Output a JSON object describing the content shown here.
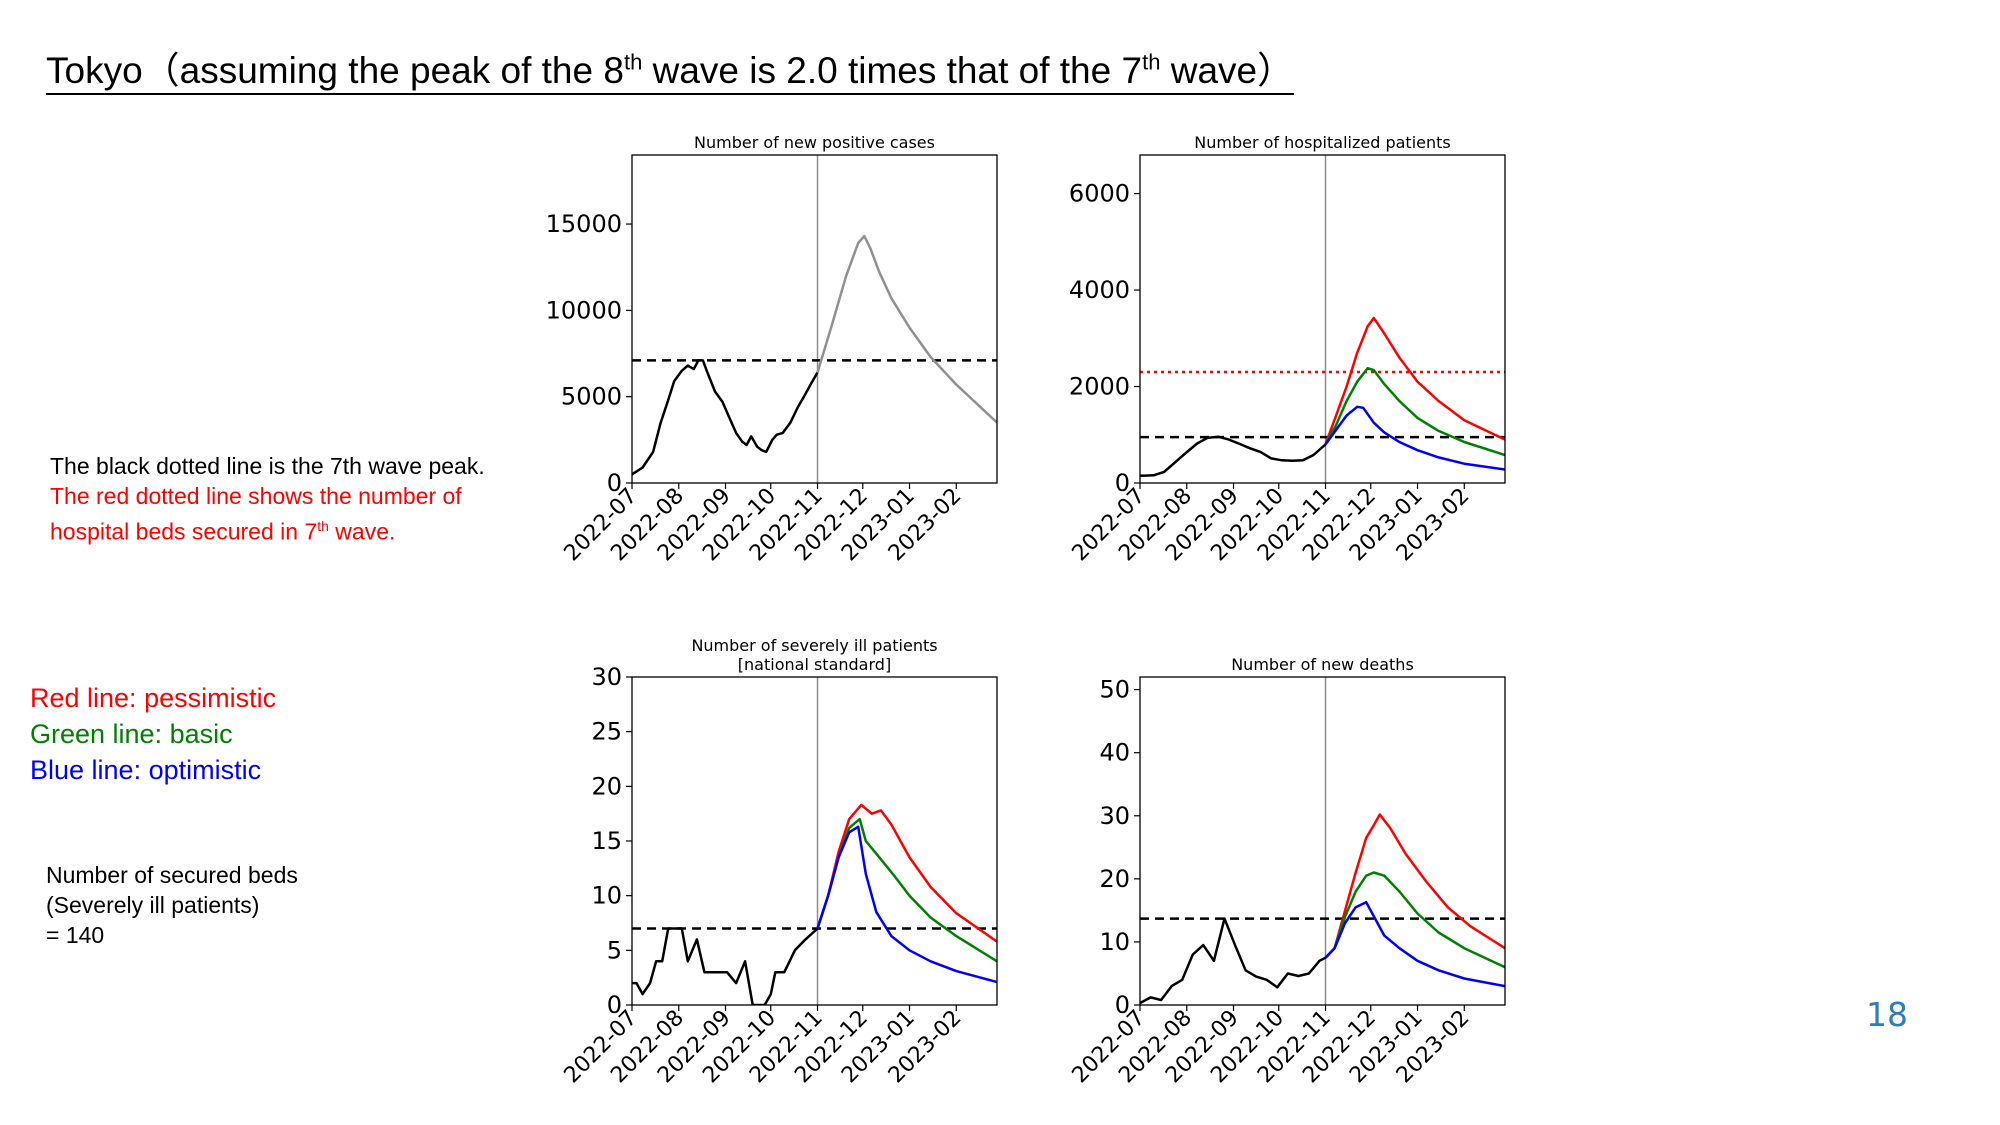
{
  "slide": {
    "title_prefix": "Tokyo（assuming the peak of the 8",
    "title_sup1": "th",
    "title_mid": " wave is 2.0 times that of the 7",
    "title_sup2": "th",
    "title_suffix": " wave）",
    "notes": {
      "black_line": "The black dotted line is the 7th wave peak.",
      "red_line_1": "The red dotted line shows the number of",
      "red_line_2_prefix": "hospital beds secured in 7",
      "red_line_2_sup": "th",
      "red_line_2_suffix": " wave."
    },
    "legend": {
      "red": "Red line: pessimistic",
      "green": "Green line: basic",
      "blue": "Blue line: optimistic"
    },
    "beds_note": [
      "Number of secured beds",
      "(Severely ill patients)",
      "= 140"
    ],
    "page_number": "18"
  },
  "colors": {
    "observed": "#000000",
    "projection_single": "#909090",
    "pessimistic": "#ff0000",
    "basic": "#008000",
    "optimistic": "#0000ff",
    "page_number": "#2e7eb8"
  },
  "chart_data": [
    {
      "type": "line",
      "title": "Number of new positive cases",
      "x_ticks": [
        "2022-07",
        "2022-08",
        "2022-09",
        "2022-10",
        "2022-11",
        "2022-12",
        "2023-01",
        "2023-02"
      ],
      "xlim": [
        "2022-07-01",
        "2023-02-28"
      ],
      "ylim": [
        0,
        19000
      ],
      "y_ticks": [
        0,
        5000,
        10000,
        15000
      ],
      "current_date": "2022-11-01",
      "hlines": [
        {
          "label": "7th wave peak",
          "value": 7100,
          "style": "dashed",
          "color": "#000000"
        }
      ],
      "series": [
        {
          "role": "observed",
          "x": [
            "2022-07-01",
            "2022-07-08",
            "2022-07-15",
            "2022-07-20",
            "2022-07-25",
            "2022-07-29",
            "2022-08-03",
            "2022-08-07",
            "2022-08-11",
            "2022-08-14",
            "2022-08-17",
            "2022-08-20",
            "2022-08-25",
            "2022-08-30",
            "2022-09-04",
            "2022-09-08",
            "2022-09-12",
            "2022-09-15",
            "2022-09-18",
            "2022-09-22",
            "2022-09-25",
            "2022-09-28",
            "2022-10-02",
            "2022-10-05",
            "2022-10-09",
            "2022-10-14",
            "2022-10-19",
            "2022-10-23",
            "2022-10-28",
            "2022-11-01"
          ],
          "y": [
            500,
            900,
            1800,
            3500,
            4800,
            5900,
            6500,
            6800,
            6600,
            7100,
            7100,
            6400,
            5300,
            4700,
            3700,
            2900,
            2400,
            2200,
            2700,
            2100,
            1900,
            1800,
            2500,
            2800,
            2900,
            3500,
            4400,
            5000,
            5800,
            6400
          ]
        },
        {
          "role": "projection",
          "x": [
            "2022-11-01",
            "2022-11-10",
            "2022-11-20",
            "2022-11-28",
            "2022-12-02",
            "2022-12-06",
            "2022-12-12",
            "2022-12-20",
            "2023-01-01",
            "2023-01-15",
            "2023-02-01",
            "2023-02-28"
          ],
          "y": [
            6400,
            9000,
            12000,
            13900,
            14300,
            13600,
            12200,
            10700,
            9000,
            7300,
            5700,
            3500
          ]
        }
      ]
    },
    {
      "type": "line",
      "title": "Number of hospitalized patients",
      "x_ticks": [
        "2022-07",
        "2022-08",
        "2022-09",
        "2022-10",
        "2022-11",
        "2022-12",
        "2023-01",
        "2023-02"
      ],
      "xlim": [
        "2022-07-01",
        "2023-02-28"
      ],
      "ylim": [
        0,
        6800
      ],
      "y_ticks": [
        0,
        2000,
        4000,
        6000
      ],
      "current_date": "2022-11-01",
      "hlines": [
        {
          "label": "7th wave peak",
          "value": 950,
          "style": "dashed",
          "color": "#000000"
        },
        {
          "label": "hospital beds secured in 7th wave",
          "value": 2300,
          "style": "dotted",
          "color": "#ff0000"
        }
      ],
      "series": [
        {
          "role": "observed",
          "x": [
            "2022-07-01",
            "2022-07-10",
            "2022-07-17",
            "2022-07-24",
            "2022-08-01",
            "2022-08-08",
            "2022-08-15",
            "2022-08-22",
            "2022-08-29",
            "2022-09-05",
            "2022-09-12",
            "2022-09-19",
            "2022-09-26",
            "2022-10-03",
            "2022-10-10",
            "2022-10-17",
            "2022-10-24",
            "2022-11-01"
          ],
          "y": [
            150,
            160,
            230,
            420,
            640,
            820,
            940,
            960,
            900,
            810,
            720,
            640,
            510,
            470,
            460,
            470,
            580,
            800
          ]
        },
        {
          "role": "pessimistic",
          "x": [
            "2022-11-01",
            "2022-11-08",
            "2022-11-15",
            "2022-11-22",
            "2022-11-29",
            "2022-12-03",
            "2022-12-10",
            "2022-12-20",
            "2023-01-01",
            "2023-01-15",
            "2023-02-01",
            "2023-02-28"
          ],
          "y": [
            800,
            1400,
            2000,
            2700,
            3250,
            3420,
            3100,
            2600,
            2100,
            1700,
            1300,
            900
          ]
        },
        {
          "role": "basic",
          "x": [
            "2022-11-01",
            "2022-11-08",
            "2022-11-15",
            "2022-11-22",
            "2022-11-29",
            "2022-12-03",
            "2022-12-10",
            "2022-12-20",
            "2023-01-01",
            "2023-01-15",
            "2023-02-01",
            "2023-02-28"
          ],
          "y": [
            800,
            1200,
            1700,
            2100,
            2380,
            2340,
            2050,
            1700,
            1350,
            1080,
            850,
            580
          ]
        },
        {
          "role": "optimistic",
          "x": [
            "2022-11-01",
            "2022-11-08",
            "2022-11-15",
            "2022-11-22",
            "2022-11-26",
            "2022-12-03",
            "2022-12-10",
            "2022-12-20",
            "2023-01-01",
            "2023-01-15",
            "2023-02-01",
            "2023-02-28"
          ],
          "y": [
            800,
            1100,
            1400,
            1580,
            1560,
            1250,
            1050,
            850,
            680,
            530,
            400,
            280
          ]
        }
      ]
    },
    {
      "type": "line",
      "title": "Number of severely ill patients",
      "subtitle": "[national standard]",
      "x_ticks": [
        "2022-07",
        "2022-08",
        "2022-09",
        "2022-10",
        "2022-11",
        "2022-12",
        "2023-01",
        "2023-02"
      ],
      "xlim": [
        "2022-07-01",
        "2023-02-28"
      ],
      "ylim": [
        0,
        30
      ],
      "y_ticks": [
        0,
        5,
        10,
        15,
        20,
        25,
        30
      ],
      "current_date": "2022-11-01",
      "hlines": [
        {
          "label": "7th wave peak",
          "value": 7,
          "style": "dashed",
          "color": "#000000"
        }
      ],
      "series": [
        {
          "role": "observed",
          "x": [
            "2022-07-01",
            "2022-07-04",
            "2022-07-08",
            "2022-07-13",
            "2022-07-17",
            "2022-07-21",
            "2022-07-25",
            "2022-07-28",
            "2022-08-03",
            "2022-08-07",
            "2022-08-13",
            "2022-08-18",
            "2022-08-22",
            "2022-08-27",
            "2022-09-02",
            "2022-09-08",
            "2022-09-14",
            "2022-09-19",
            "2022-09-24",
            "2022-09-27",
            "2022-10-01",
            "2022-10-04",
            "2022-10-10",
            "2022-10-17",
            "2022-10-24",
            "2022-11-01"
          ],
          "y": [
            2,
            2,
            1,
            2,
            4,
            4,
            7,
            7,
            7,
            4,
            6,
            3,
            3,
            3,
            3,
            2,
            4,
            0,
            0,
            0,
            1,
            3,
            3,
            5,
            6,
            7
          ]
        },
        {
          "role": "pessimistic",
          "x": [
            "2022-11-01",
            "2022-11-08",
            "2022-11-15",
            "2022-11-22",
            "2022-11-30",
            "2022-12-07",
            "2022-12-13",
            "2022-12-20",
            "2023-01-01",
            "2023-01-15",
            "2023-02-01",
            "2023-02-28"
          ],
          "y": [
            7,
            10,
            14,
            17,
            18.3,
            17.5,
            17.8,
            16.5,
            13.5,
            10.8,
            8.4,
            5.8
          ]
        },
        {
          "role": "basic",
          "x": [
            "2022-11-01",
            "2022-11-08",
            "2022-11-15",
            "2022-11-22",
            "2022-11-29",
            "2022-12-03",
            "2022-12-12",
            "2022-12-22",
            "2023-01-01",
            "2023-01-15",
            "2023-02-01",
            "2023-02-28"
          ],
          "y": [
            7,
            10,
            13.5,
            16.2,
            17,
            15,
            13.5,
            11.8,
            10,
            8,
            6.3,
            4
          ]
        },
        {
          "role": "optimistic",
          "x": [
            "2022-11-01",
            "2022-11-08",
            "2022-11-15",
            "2022-11-22",
            "2022-11-28",
            "2022-12-03",
            "2022-12-10",
            "2022-12-20",
            "2023-01-01",
            "2023-01-15",
            "2023-02-01",
            "2023-02-28"
          ],
          "y": [
            7,
            10,
            13.5,
            15.8,
            16.3,
            12,
            8.5,
            6.3,
            5,
            4,
            3.1,
            2.1
          ]
        }
      ]
    },
    {
      "type": "line",
      "title": "Number of new deaths",
      "x_ticks": [
        "2022-07",
        "2022-08",
        "2022-09",
        "2022-10",
        "2022-11",
        "2022-12",
        "2023-01",
        "2023-02"
      ],
      "xlim": [
        "2022-07-01",
        "2023-02-28"
      ],
      "ylim": [
        0,
        52
      ],
      "y_ticks": [
        0,
        10,
        20,
        30,
        40,
        50
      ],
      "current_date": "2022-11-01",
      "hlines": [
        {
          "label": "7th wave peak",
          "value": 13.7,
          "style": "dashed",
          "color": "#000000"
        }
      ],
      "series": [
        {
          "role": "observed",
          "x": [
            "2022-07-01",
            "2022-07-08",
            "2022-07-15",
            "2022-07-22",
            "2022-07-29",
            "2022-08-05",
            "2022-08-12",
            "2022-08-19",
            "2022-08-26",
            "2022-09-02",
            "2022-09-09",
            "2022-09-16",
            "2022-09-23",
            "2022-09-30",
            "2022-10-07",
            "2022-10-14",
            "2022-10-21",
            "2022-10-28",
            "2022-11-01"
          ],
          "y": [
            0.3,
            1.2,
            0.8,
            3,
            4,
            8,
            9.5,
            7,
            13.7,
            9.5,
            5.5,
            4.5,
            4,
            2.8,
            5,
            4.6,
            5,
            7,
            7.5
          ]
        },
        {
          "role": "pessimistic",
          "x": [
            "2022-11-01",
            "2022-11-07",
            "2022-11-14",
            "2022-11-21",
            "2022-11-28",
            "2022-12-03",
            "2022-12-07",
            "2022-12-14",
            "2022-12-24",
            "2023-01-07",
            "2023-01-21",
            "2023-02-05",
            "2023-02-28"
          ],
          "y": [
            7.5,
            9,
            15,
            21,
            26.5,
            28.5,
            30.2,
            28,
            24,
            19.5,
            15.5,
            12.5,
            9
          ]
        },
        {
          "role": "basic",
          "x": [
            "2022-11-01",
            "2022-11-07",
            "2022-11-14",
            "2022-11-21",
            "2022-11-28",
            "2022-12-03",
            "2022-12-10",
            "2022-12-20",
            "2023-01-01",
            "2023-01-15",
            "2023-02-01",
            "2023-02-28"
          ],
          "y": [
            7.5,
            9,
            14,
            18,
            20.5,
            21,
            20.5,
            18,
            14.5,
            11.5,
            9,
            6
          ]
        },
        {
          "role": "optimistic",
          "x": [
            "2022-11-01",
            "2022-11-07",
            "2022-11-14",
            "2022-11-21",
            "2022-11-28",
            "2022-12-02",
            "2022-12-10",
            "2022-12-20",
            "2023-01-01",
            "2023-01-15",
            "2023-02-01",
            "2023-02-28"
          ],
          "y": [
            7.5,
            9,
            13,
            15.5,
            16.3,
            14.5,
            11,
            9,
            7,
            5.5,
            4.2,
            3
          ]
        }
      ]
    }
  ]
}
